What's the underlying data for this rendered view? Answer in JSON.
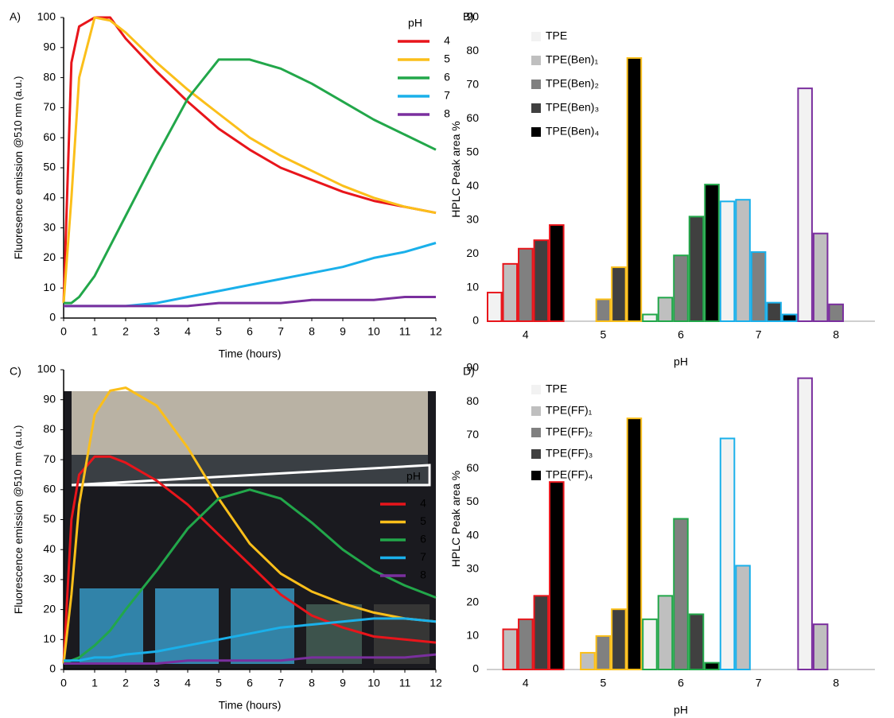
{
  "chart_data": [
    {
      "type": "line",
      "panel": "A)",
      "y_label": "Fluoresence emission ",
      "y_label_sub": "@510 nm (a.u.)",
      "x_label": "Time (hours)",
      "legend_title": "pH",
      "x": [
        0,
        0.25,
        0.5,
        1,
        1.5,
        2,
        3,
        4,
        5,
        6,
        7,
        8,
        9,
        10,
        11,
        12
      ],
      "series": [
        {
          "name": "4",
          "color": "#e8151b",
          "values": [
            5,
            85,
            97,
            100,
            100,
            93,
            82,
            72,
            63,
            56,
            50,
            46,
            42,
            39,
            37,
            35
          ]
        },
        {
          "name": "5",
          "color": "#fbbf1a",
          "values": [
            5,
            40,
            80,
            100,
            99,
            95,
            85,
            76,
            68,
            60,
            54,
            49,
            44,
            40,
            37,
            35
          ]
        },
        {
          "name": "6",
          "color": "#22a74a",
          "values": [
            5,
            5,
            7,
            14,
            24,
            34,
            54,
            73,
            86,
            86,
            83,
            78,
            72,
            66,
            61,
            56
          ]
        },
        {
          "name": "7",
          "color": "#1ab0ea",
          "values": [
            4,
            4,
            4,
            4,
            4,
            4,
            5,
            7,
            9,
            11,
            13,
            15,
            17,
            20,
            22,
            25
          ]
        },
        {
          "name": "8",
          "color": "#7a2f9e",
          "values": [
            4,
            4,
            4,
            4,
            4,
            4,
            4,
            4,
            5,
            5,
            5,
            6,
            6,
            6,
            7,
            7
          ]
        }
      ],
      "xlim": [
        0,
        12
      ],
      "ylim": [
        0,
        100
      ],
      "xticks": [
        0,
        1,
        2,
        3,
        4,
        5,
        6,
        7,
        8,
        9,
        10,
        11,
        12
      ],
      "yticks": [
        0,
        10,
        20,
        30,
        40,
        50,
        60,
        70,
        80,
        90,
        100
      ]
    },
    {
      "type": "bar",
      "panel": "B)",
      "y_label": "HPLC Peak area %",
      "x_label": "pH",
      "categories": [
        "4",
        "5",
        "6",
        "7",
        "8"
      ],
      "category_colors": [
        "#e8151b",
        "#fbbf1a",
        "#22a74a",
        "#1ab0ea",
        "#7a2f9e"
      ],
      "series": [
        {
          "name": "TPE",
          "color": "#f2f2f2",
          "values": [
            8.5,
            null,
            2,
            35.5,
            69
          ]
        },
        {
          "name": "TPE(Ben)₁",
          "color": "#bfbfbf",
          "values": [
            17,
            null,
            7,
            36,
            26
          ]
        },
        {
          "name": "TPE(Ben)₂",
          "color": "#808080",
          "values": [
            21.5,
            6.5,
            19.5,
            20.5,
            5
          ]
        },
        {
          "name": "TPE(Ben)₃",
          "color": "#404040",
          "values": [
            24,
            16,
            31,
            5.5,
            null
          ]
        },
        {
          "name": "TPE(Ben)₄",
          "color": "#000000",
          "values": [
            28.5,
            78,
            40.5,
            2,
            null
          ]
        }
      ],
      "ylim": [
        0,
        90
      ],
      "yticks": [
        0,
        10,
        20,
        30,
        40,
        50,
        60,
        70,
        80,
        90
      ]
    },
    {
      "type": "line",
      "panel": "C)",
      "y_label": "Fluorescence emission ",
      "y_label_sub": "@510 nm (a.u.)",
      "x_label": "Time (hours)",
      "legend_title": "pH",
      "x": [
        0,
        0.25,
        0.5,
        1,
        1.5,
        2,
        3,
        4,
        5,
        6,
        7,
        8,
        9,
        10,
        11,
        12
      ],
      "series": [
        {
          "name": "4",
          "color": "#e8151b",
          "values": [
            2,
            50,
            65,
            71,
            71,
            69,
            63,
            55,
            45,
            35,
            25,
            18,
            14,
            11,
            10,
            9
          ]
        },
        {
          "name": "5",
          "color": "#fbbf1a",
          "values": [
            2,
            25,
            55,
            85,
            93,
            94,
            88,
            74,
            57,
            42,
            32,
            26,
            22,
            19,
            17,
            16
          ]
        },
        {
          "name": "6",
          "color": "#22a74a",
          "values": [
            2,
            3,
            4,
            8,
            13,
            20,
            33,
            47,
            57,
            60,
            57,
            49,
            40,
            33,
            28,
            24
          ]
        },
        {
          "name": "7",
          "color": "#1ab0ea",
          "values": [
            3,
            3,
            3,
            4,
            4,
            5,
            6,
            8,
            10,
            12,
            14,
            15,
            16,
            17,
            17,
            16
          ]
        },
        {
          "name": "8",
          "color": "#7a2f9e",
          "values": [
            2,
            2,
            2,
            2,
            2,
            2,
            2,
            3,
            3,
            3,
            3,
            4,
            4,
            4,
            4,
            5
          ]
        }
      ],
      "xlim": [
        0,
        12
      ],
      "ylim": [
        0,
        100
      ],
      "xticks": [
        0,
        1,
        2,
        3,
        4,
        5,
        6,
        7,
        8,
        9,
        10,
        11,
        12
      ],
      "yticks": [
        0,
        10,
        20,
        30,
        40,
        50,
        60,
        70,
        80,
        90,
        100
      ]
    },
    {
      "type": "bar",
      "panel": "D)",
      "y_label": "HPLC Peak area %",
      "x_label": "pH",
      "categories": [
        "4",
        "5",
        "6",
        "7",
        "8"
      ],
      "category_colors": [
        "#e8151b",
        "#fbbf1a",
        "#22a74a",
        "#1ab0ea",
        "#7a2f9e"
      ],
      "series": [
        {
          "name": "TPE",
          "color": "#f2f2f2",
          "values": [
            null,
            null,
            15,
            69,
            87
          ]
        },
        {
          "name": "TPE(FF)₁",
          "color": "#bfbfbf",
          "values": [
            12,
            5,
            22,
            31,
            13.5
          ]
        },
        {
          "name": "TPE(FF)₂",
          "color": "#808080",
          "values": [
            15,
            10,
            45,
            null,
            null
          ]
        },
        {
          "name": "TPE(FF)₃",
          "color": "#404040",
          "values": [
            22,
            18,
            16.5,
            null,
            null
          ]
        },
        {
          "name": "TPE(FF)₄",
          "color": "#000000",
          "values": [
            56,
            75,
            2,
            null,
            null
          ]
        }
      ],
      "ylim": [
        0,
        90
      ],
      "yticks": [
        0,
        10,
        20,
        30,
        40,
        50,
        60,
        70,
        80,
        90
      ]
    }
  ]
}
